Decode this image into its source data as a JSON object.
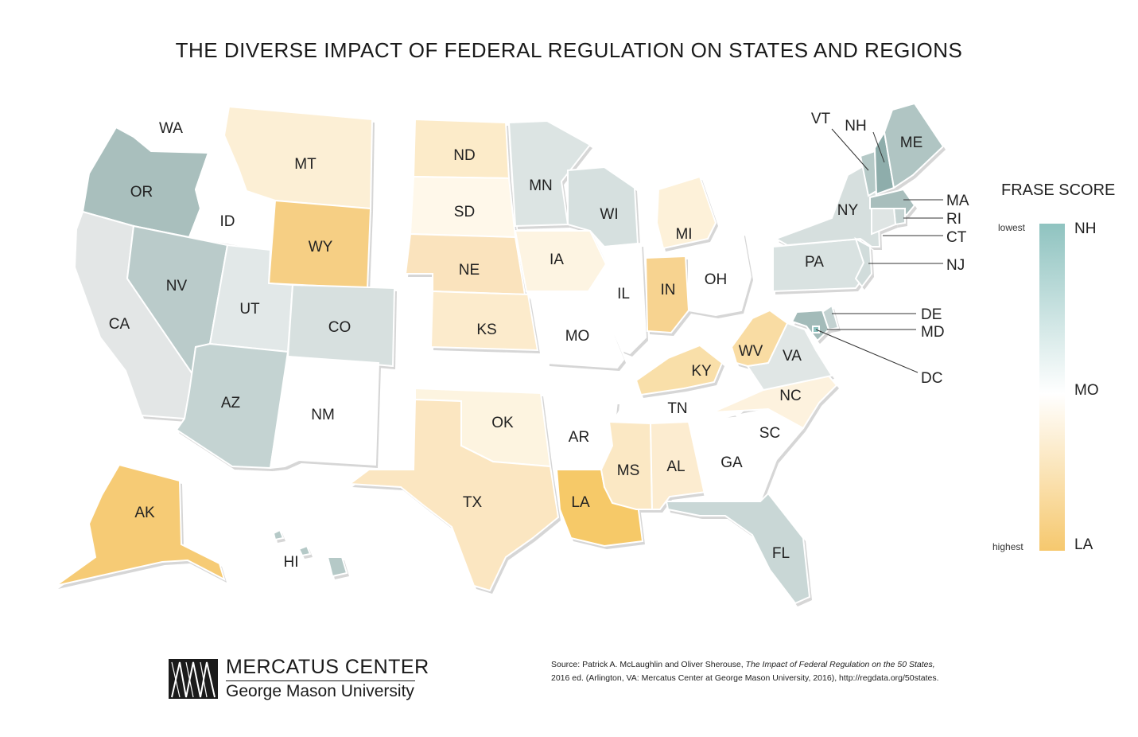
{
  "title": "THE DIVERSE IMPACT OF FEDERAL REGULATION ON STATES AND REGIONS",
  "legend": {
    "title": "FRASE SCORE",
    "low_label": "lowest",
    "high_label": "highest",
    "top_state": "NH",
    "mid_state": "MO",
    "bottom_state": "LA",
    "colors": {
      "lowest": "#8fc3c0",
      "mid": "#ffffff",
      "highest": "#f6c86e"
    }
  },
  "states": {
    "WA": {
      "label": "WA",
      "color": "#ffffff"
    },
    "OR": {
      "label": "OR",
      "color": "#a9bfbd"
    },
    "CA": {
      "label": "CA",
      "color": "#e3e6e6"
    },
    "ID": {
      "label": "ID",
      "color": "#ffffff"
    },
    "NV": {
      "label": "NV",
      "color": "#bacbca"
    },
    "MT": {
      "label": "MT",
      "color": "#fcefd5"
    },
    "WY": {
      "label": "WY",
      "color": "#f6cf84"
    },
    "UT": {
      "label": "UT",
      "color": "#e2e8e8"
    },
    "AZ": {
      "label": "AZ",
      "color": "#c4d3d2"
    },
    "CO": {
      "label": "CO",
      "color": "#d7e0df"
    },
    "NM": {
      "label": "NM",
      "color": "#ffffff"
    },
    "ND": {
      "label": "ND",
      "color": "#fcebc9"
    },
    "SD": {
      "label": "SD",
      "color": "#fff8ea"
    },
    "NE": {
      "label": "NE",
      "color": "#fae3bd"
    },
    "KS": {
      "label": "KS",
      "color": "#fcebcc"
    },
    "OK": {
      "label": "OK",
      "color": "#fdf4e0"
    },
    "TX": {
      "label": "TX",
      "color": "#fbe6c1"
    },
    "MN": {
      "label": "MN",
      "color": "#dce4e3"
    },
    "IA": {
      "label": "IA",
      "color": "#fdf4e2"
    },
    "MO": {
      "label": "MO",
      "color": "#ffffff"
    },
    "AR": {
      "label": "AR",
      "color": "#ffffff"
    },
    "LA": {
      "label": "LA",
      "color": "#f6c968"
    },
    "WI": {
      "label": "WI",
      "color": "#d6e0df"
    },
    "IL": {
      "label": "IL",
      "color": "#ffffff"
    },
    "MI": {
      "label": "MI",
      "color": "#fdf1d9"
    },
    "IN": {
      "label": "IN",
      "color": "#f7d390"
    },
    "OH": {
      "label": "OH",
      "color": "#ffffff"
    },
    "KY": {
      "label": "KY",
      "color": "#f9dfa9"
    },
    "TN": {
      "label": "TN",
      "color": "#ffffff"
    },
    "MS": {
      "label": "MS",
      "color": "#fbe8c4"
    },
    "AL": {
      "label": "AL",
      "color": "#fcecd0"
    },
    "GA": {
      "label": "GA",
      "color": "#ffffff"
    },
    "FL": {
      "label": "FL",
      "color": "#c9d7d6"
    },
    "SC": {
      "label": "SC",
      "color": "#ffffff"
    },
    "NC": {
      "label": "NC",
      "color": "#fdf2de"
    },
    "VA": {
      "label": "VA",
      "color": "#e0e6e5"
    },
    "WV": {
      "label": "WV",
      "color": "#f9dca3"
    },
    "PA": {
      "label": "PA",
      "color": "#d9e2e1"
    },
    "NY": {
      "label": "NY",
      "color": "#d6dfde"
    },
    "VT": {
      "label": "VT",
      "color": "#b5c9c7"
    },
    "NH": {
      "label": "NH",
      "color": "#8eadab"
    },
    "ME": {
      "label": "ME",
      "color": "#b0c5c3"
    },
    "MA": {
      "label": "MA",
      "color": "#a8bebc"
    },
    "RI": {
      "label": "RI",
      "color": "#c6d4d3"
    },
    "CT": {
      "label": "CT",
      "color": "#dfe5e4"
    },
    "NJ": {
      "label": "NJ",
      "color": "#d1dcdb"
    },
    "DE": {
      "label": "DE",
      "color": "#c3d2d1"
    },
    "MD": {
      "label": "MD",
      "color": "#a3bbb9"
    },
    "DC": {
      "label": "DC",
      "color": "#8fc3c0"
    },
    "AK": {
      "label": "AK",
      "color": "#f6cb75"
    },
    "HI": {
      "label": "HI",
      "color": "#b5c9c7"
    }
  },
  "logo": {
    "name": "MERCATUS CENTER",
    "university": "George Mason University"
  },
  "source": {
    "prefix": "Source: Patrick A. McLaughlin and Oliver Sherouse, ",
    "title": "The Impact of Federal Regulation on the 50 States,",
    "line2": "2016 ed. (Arlington, VA: Mercatus Center at George Mason University, 2016), http://regdata.org/50states."
  }
}
